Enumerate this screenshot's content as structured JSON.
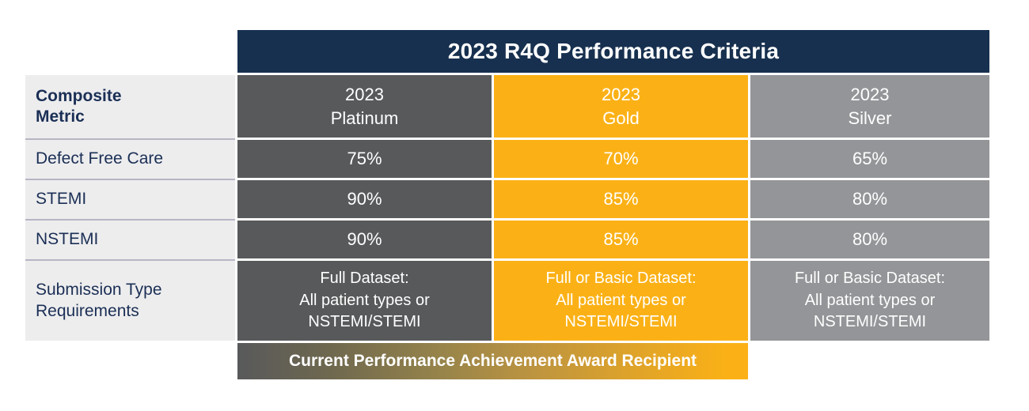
{
  "chart_data": {
    "type": "table",
    "title": "2023 R4Q Performance Criteria",
    "corner_header": "Composite Metric",
    "column_headers": [
      "2023\nPlatinum",
      "2023\nGold",
      "2023\nSilver"
    ],
    "rows": [
      {
        "label": "Defect Free Care",
        "values": [
          "75%",
          "70%",
          "65%"
        ]
      },
      {
        "label": "STEMI",
        "values": [
          "90%",
          "85%",
          "80%"
        ]
      },
      {
        "label": "NSTEMI",
        "values": [
          "90%",
          "85%",
          "80%"
        ]
      },
      {
        "label": "Submission Type Requirements",
        "values": [
          "Full Dataset:\nAll patient types or\nNSTEMI/STEMI",
          "Full or Basic Dataset:\nAll patient types or\nNSTEMI/STEMI",
          "Full or Basic Dataset:\nAll patient types or\nNSTEMI/STEMI"
        ]
      }
    ],
    "footer_banner": "Current Performance Achievement Award Recipient",
    "legend_position": "none",
    "grid": false,
    "colors": {
      "title_bar_navy": "#17304f",
      "platinum_column_gray": "#58595b",
      "gold_column": "#fbb116",
      "silver_column_gray": "#949598",
      "row_label_background": "#ededee",
      "row_label_text_navy": "#1b2f55",
      "cell_text": "#ffffff",
      "footer_gradient_start": "#58595b",
      "footer_gradient_end": "#fbb116"
    }
  }
}
